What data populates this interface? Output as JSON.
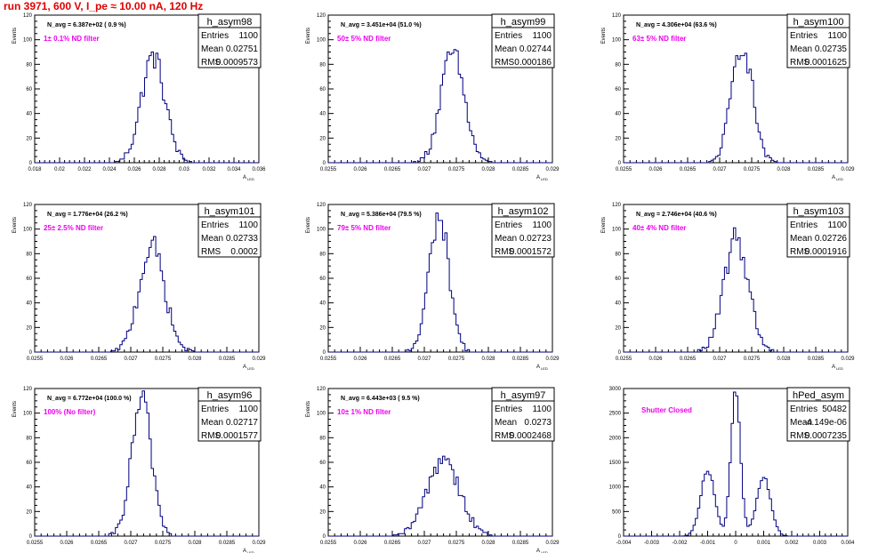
{
  "page_title": "run 3971,   600 V, I_pe ≈ 10.00 nA, 120 Hz",
  "colors": {
    "hist": "#000080",
    "note": "#ee00ee",
    "title": "#e00000",
    "axis": "#000000"
  },
  "chart_data": [
    {
      "type": "bar",
      "name": "h_asym98",
      "navg": "N_avg = 6.387e+02 ( 0.9 %)",
      "note": "1± 0.1% ND filter",
      "stats": {
        "entries": "1100",
        "mean": "0.02751",
        "rms": "0.0009573"
      },
      "ylabel": "Events",
      "xlabel": "A",
      "xlabel_sub": "LED",
      "xlim": [
        0.018,
        0.036
      ],
      "ylim": [
        0,
        120
      ],
      "xticks": [
        "0.018",
        "0.02",
        "0.022",
        "0.024",
        "0.026",
        "0.028",
        "0.03",
        "0.032",
        "0.034",
        "0.036"
      ],
      "yticks": [
        "0",
        "20",
        "40",
        "60",
        "80",
        "100",
        "120"
      ],
      "peak": {
        "mean": 0.02751,
        "sigma": 0.00096,
        "height": 86,
        "width": 0.00018
      }
    },
    {
      "type": "bar",
      "name": "h_asym99",
      "navg": "N_avg = 3.451e+04 (51.0 %)",
      "note": "50± 5% ND filter",
      "stats": {
        "entries": "1100",
        "mean": "0.02744",
        "rms": "0.000186"
      },
      "ylabel": "Events",
      "xlabel": "A",
      "xlabel_sub": "LED",
      "xlim": [
        0.0255,
        0.029
      ],
      "ylim": [
        0,
        120
      ],
      "xticks": [
        "0.0255",
        "0.026",
        "0.0265",
        "0.027",
        "0.0275",
        "0.028",
        "0.0285",
        "0.029"
      ],
      "yticks": [
        "0",
        "20",
        "40",
        "60",
        "80",
        "100",
        "120"
      ],
      "peak": {
        "mean": 0.02744,
        "sigma": 0.000186,
        "height": 88,
        "width": 3.5e-05
      }
    },
    {
      "type": "bar",
      "name": "h_asym100",
      "navg": "N_avg = 4.306e+04 (63.6 %)",
      "note": "63± 5% ND filter",
      "stats": {
        "entries": "1100",
        "mean": "0.02735",
        "rms": "0.0001625"
      },
      "ylabel": "Events",
      "xlabel": "A",
      "xlabel_sub": "LED",
      "xlim": [
        0.0255,
        0.029
      ],
      "ylim": [
        0,
        120
      ],
      "xticks": [
        "0.0255",
        "0.026",
        "0.0265",
        "0.027",
        "0.0275",
        "0.028",
        "0.0285",
        "0.029"
      ],
      "yticks": [
        "0",
        "20",
        "40",
        "60",
        "80",
        "100",
        "120"
      ],
      "peak": {
        "mean": 0.02735,
        "sigma": 0.0001625,
        "height": 97,
        "width": 3.5e-05
      }
    },
    {
      "type": "bar",
      "name": "h_asym101",
      "navg": "N_avg = 1.776e+04 (26.2 %)",
      "note": "25± 2.5% ND filter",
      "stats": {
        "entries": "1100",
        "mean": "0.02733",
        "rms": "0.0002"
      },
      "ylabel": "Events",
      "xlabel": "A",
      "xlabel_sub": "LED",
      "xlim": [
        0.0255,
        0.029
      ],
      "ylim": [
        0,
        120
      ],
      "xticks": [
        "0.0255",
        "0.026",
        "0.0265",
        "0.027",
        "0.0275",
        "0.028",
        "0.0285",
        "0.029"
      ],
      "yticks": [
        "0",
        "20",
        "40",
        "60",
        "80",
        "100",
        "120"
      ],
      "peak": {
        "mean": 0.02733,
        "sigma": 0.0002,
        "height": 86,
        "width": 3.5e-05
      }
    },
    {
      "type": "bar",
      "name": "h_asym102",
      "navg": "N_avg = 5.386e+04 (79.5 %)",
      "note": "79± 5% ND filter",
      "stats": {
        "entries": "1100",
        "mean": "0.02723",
        "rms": "0.0001572"
      },
      "ylabel": "Events",
      "xlabel": "A",
      "xlabel_sub": "LED",
      "xlim": [
        0.0255,
        0.029
      ],
      "ylim": [
        0,
        120
      ],
      "xticks": [
        "0.0255",
        "0.026",
        "0.0265",
        "0.027",
        "0.0275",
        "0.028",
        "0.0285",
        "0.029"
      ],
      "yticks": [
        "0",
        "20",
        "40",
        "60",
        "80",
        "100",
        "120"
      ],
      "peak": {
        "mean": 0.02723,
        "sigma": 0.0001572,
        "height": 110,
        "width": 3.5e-05
      }
    },
    {
      "type": "bar",
      "name": "h_asym103",
      "navg": "N_avg = 2.746e+04 (40.6 %)",
      "note": "40± 4% ND filter",
      "stats": {
        "entries": "1100",
        "mean": "0.02726",
        "rms": "0.0001916"
      },
      "ylabel": "Events",
      "xlabel": "A",
      "xlabel_sub": "LED",
      "xlim": [
        0.0255,
        0.029
      ],
      "ylim": [
        0,
        120
      ],
      "xticks": [
        "0.0255",
        "0.026",
        "0.0265",
        "0.027",
        "0.0275",
        "0.028",
        "0.0285",
        "0.029"
      ],
      "yticks": [
        "0",
        "20",
        "40",
        "60",
        "80",
        "100",
        "120"
      ],
      "peak": {
        "mean": 0.02726,
        "sigma": 0.0001916,
        "height": 92,
        "width": 3.5e-05
      }
    },
    {
      "type": "bar",
      "name": "h_asym96",
      "navg": "N_avg = 6.772e+04 (100.0 %)",
      "note": "100% (No filter)",
      "stats": {
        "entries": "1100",
        "mean": "0.02717",
        "rms": "0.0001577"
      },
      "ylabel": "Events",
      "xlabel": "A",
      "xlabel_sub": "LED",
      "xlim": [
        0.0255,
        0.029
      ],
      "ylim": [
        0,
        120
      ],
      "xticks": [
        "0.0255",
        "0.026",
        "0.0265",
        "0.027",
        "0.0275",
        "0.028",
        "0.0285",
        "0.029"
      ],
      "yticks": [
        "0",
        "20",
        "40",
        "60",
        "80",
        "100",
        "120"
      ],
      "peak": {
        "mean": 0.02717,
        "sigma": 0.0001577,
        "height": 110,
        "width": 3.5e-05
      }
    },
    {
      "type": "bar",
      "name": "h_asym97",
      "navg": "N_avg = 6.443e+03 ( 9.5 %)",
      "note": "10± 1% ND filter",
      "stats": {
        "entries": "1100",
        "mean": "0.0273",
        "rms": "0.0002468"
      },
      "ylabel": "Events",
      "xlabel": "A",
      "xlabel_sub": "LED",
      "xlim": [
        0.0255,
        0.029
      ],
      "ylim": [
        0,
        120
      ],
      "xticks": [
        "0.0255",
        "0.026",
        "0.0265",
        "0.027",
        "0.0275",
        "0.028",
        "0.0285",
        "0.029"
      ],
      "yticks": [
        "0",
        "20",
        "40",
        "60",
        "80",
        "100",
        "120"
      ],
      "peak": {
        "mean": 0.0273,
        "sigma": 0.00025,
        "height": 64,
        "width": 3.5e-05
      }
    },
    {
      "type": "bar",
      "name": "hPed_asym",
      "navg": "",
      "note": "Shutter Closed",
      "stats": {
        "entries": "50482",
        "mean": "-4.149e-06",
        "rms": "0.0007235"
      },
      "ylabel": "",
      "xlabel": "",
      "xlabel_sub": "",
      "xlim": [
        -0.004,
        0.004
      ],
      "ylim": [
        0,
        3000
      ],
      "xticks": [
        "-0.004",
        "-0.003",
        "-0.002",
        "-0.001",
        "0",
        "0.001",
        "0.002",
        "0.003",
        "0.004"
      ],
      "yticks": [
        "0",
        "500",
        "1000",
        "1500",
        "2000",
        "2500",
        "3000"
      ],
      "peaks": [
        {
          "mean": -0.001,
          "sigma": 0.00025,
          "height": 1350
        },
        {
          "mean": 0.0,
          "sigma": 0.00017,
          "height": 2950
        },
        {
          "mean": 0.001,
          "sigma": 0.00025,
          "height": 1200
        }
      ],
      "width": 8e-05
    }
  ]
}
